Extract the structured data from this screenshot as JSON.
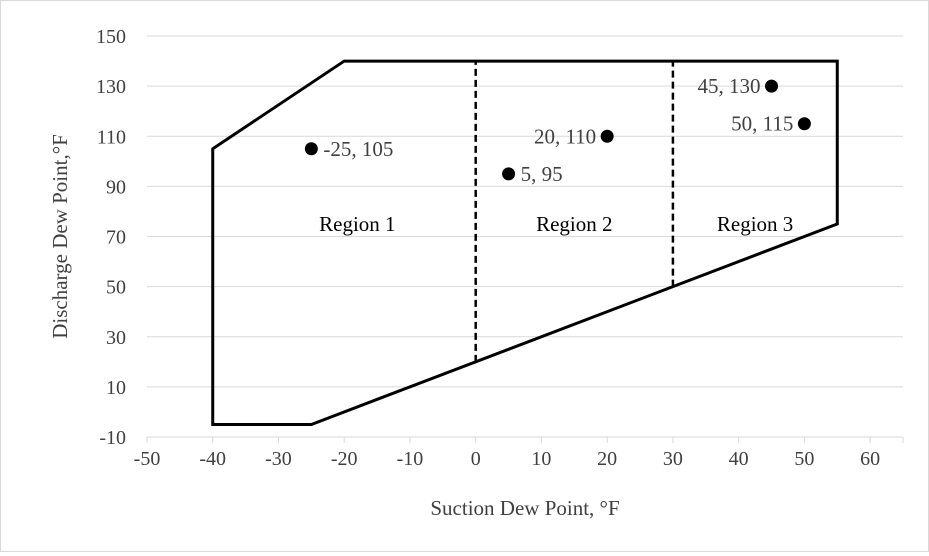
{
  "chart_data": {
    "type": "scatter",
    "title": "",
    "xlabel": "Suction Dew Point, °F",
    "ylabel": "Discharge Dew Point,°F",
    "xlim": [
      -50,
      65
    ],
    "ylim": [
      -10,
      150
    ],
    "x_ticks": [
      -50,
      -40,
      -30,
      -20,
      -10,
      0,
      10,
      20,
      30,
      40,
      50,
      60
    ],
    "y_ticks": [
      -10,
      10,
      30,
      50,
      70,
      90,
      110,
      130,
      150
    ],
    "x_tick_labels": [
      "-50",
      "-40",
      "-30",
      "-20",
      "-10",
      "0",
      "10",
      "20",
      "30",
      "40",
      "50",
      "60"
    ],
    "y_tick_labels": [
      "-10",
      "10",
      "30",
      "50",
      "70",
      "90",
      "110",
      "130",
      "150"
    ],
    "grid": "horizontal",
    "envelope": [
      [
        -40,
        -5
      ],
      [
        -40,
        105
      ],
      [
        -20,
        140
      ],
      [
        55,
        140
      ],
      [
        55,
        75
      ],
      [
        -25,
        -5
      ]
    ],
    "dividers": [
      {
        "x": 0,
        "y_range": [
          20,
          140
        ],
        "style": "dashed"
      },
      {
        "x": 30,
        "y_range": [
          50,
          140
        ],
        "style": "dashed"
      }
    ],
    "regions": [
      {
        "label": "Region 1",
        "x": -18,
        "y": 75
      },
      {
        "label": "Region 2",
        "x": 15,
        "y": 75
      },
      {
        "label": "Region 3",
        "x": 42.5,
        "y": 75
      }
    ],
    "points": [
      {
        "x": -25,
        "y": 105,
        "label": "-25, 105",
        "label_side": "right"
      },
      {
        "x": 5,
        "y": 95,
        "label": "5, 95",
        "label_side": "right"
      },
      {
        "x": 20,
        "y": 110,
        "label": "20, 110",
        "label_side": "left"
      },
      {
        "x": 45,
        "y": 130,
        "label": "45, 130",
        "label_side": "left"
      },
      {
        "x": 50,
        "y": 115,
        "label": "50, 115",
        "label_side": "left"
      }
    ]
  }
}
